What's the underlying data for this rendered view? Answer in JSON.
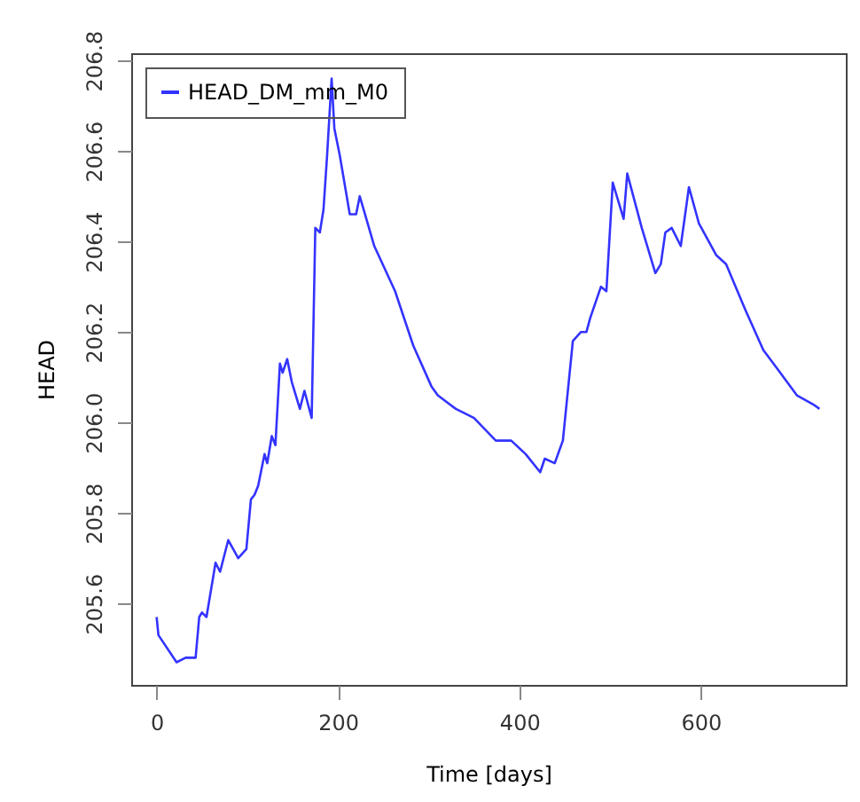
{
  "chart_data": {
    "type": "line",
    "xlabel": "Time [days]",
    "ylabel": "HEAD",
    "legend": "top left",
    "grid": false,
    "marker": "none",
    "line_style": "solid",
    "xlim": [
      -28,
      760
    ],
    "ylim": [
      205.42,
      206.816
    ],
    "xticks": [
      0,
      200,
      400,
      600
    ],
    "yticks": [
      {
        "value": 205.6,
        "label": "205.6"
      },
      {
        "value": 205.8,
        "label": "205.8"
      },
      {
        "value": 206.0,
        "label": "206.0"
      },
      {
        "value": 206.2,
        "label": "206.2"
      },
      {
        "value": 206.4,
        "label": "206.4"
      },
      {
        "value": 206.6,
        "label": "206.6"
      },
      {
        "value": 206.8,
        "label": "206.8"
      }
    ],
    "series": [
      {
        "name": "HEAD_DM_mm_M0",
        "color": "#3333ff",
        "x": [
          0,
          2,
          22,
          32,
          43,
          47,
          50,
          55,
          65,
          70,
          79,
          90,
          99,
          104,
          108,
          112,
          119,
          122,
          127,
          131,
          136,
          139,
          144,
          149,
          158,
          163,
          171,
          175,
          180,
          184,
          188,
          193,
          196,
          202,
          213,
          220,
          224,
          240,
          263,
          283,
          303,
          310,
          330,
          350,
          374,
          391,
          407,
          423,
          428,
          439,
          448,
          459,
          468,
          474,
          478,
          490,
          496,
          503,
          515,
          519,
          535,
          550,
          556,
          561,
          568,
          578,
          587,
          598,
          617,
          628,
          649,
          669,
          684,
          706,
          724,
          731
        ],
        "values": [
          205.57,
          205.53,
          205.47,
          205.48,
          205.48,
          205.57,
          205.58,
          205.57,
          205.69,
          205.67,
          205.74,
          205.7,
          205.72,
          205.83,
          205.84,
          205.86,
          205.93,
          205.91,
          205.97,
          205.95,
          206.13,
          206.11,
          206.14,
          206.09,
          206.03,
          206.07,
          206.01,
          206.43,
          206.42,
          206.47,
          206.59,
          206.76,
          206.65,
          206.59,
          206.46,
          206.46,
          206.5,
          206.39,
          206.29,
          206.17,
          206.08,
          206.06,
          206.03,
          206.01,
          205.96,
          205.96,
          205.93,
          205.89,
          205.92,
          205.91,
          205.96,
          206.18,
          206.2,
          206.2,
          206.23,
          206.3,
          206.29,
          206.53,
          206.45,
          206.55,
          206.43,
          206.33,
          206.35,
          206.42,
          206.43,
          206.39,
          206.52,
          206.44,
          206.37,
          206.35,
          206.25,
          206.16,
          206.12,
          206.06,
          206.04,
          206.03
        ]
      }
    ]
  }
}
